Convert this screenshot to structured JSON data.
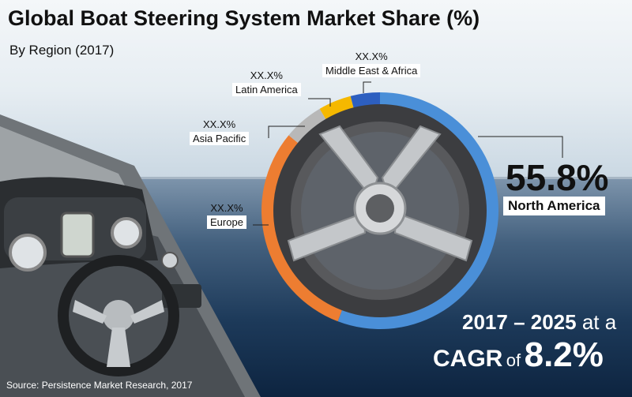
{
  "title": "Global Boat Steering System Market Share (%)",
  "subtitle": "By Region (2017)",
  "colors": {
    "north_america": "#4a8fd8",
    "europe": "#ed7d31",
    "asia_pacific": "#b8b8b8",
    "latin_america": "#f5b800",
    "middle_east_africa": "#2d5fc0"
  },
  "chart_data": {
    "type": "pie",
    "title": "Global Boat Steering System Market Share (%)",
    "subtitle": "By Region (2017)",
    "series": [
      {
        "name": "North America",
        "value": 55.8,
        "label": "55.8%"
      },
      {
        "name": "Europe",
        "value": 30.2,
        "label": "XX.X%"
      },
      {
        "name": "Asia Pacific",
        "value": 5.5,
        "label": "XX.X%"
      },
      {
        "name": "Latin America",
        "value": 4.5,
        "label": "XX.X%"
      },
      {
        "name": "Middle East & Africa",
        "value": 4.0,
        "label": "XX.X%"
      }
    ]
  },
  "labels": {
    "mea_pct": "XX.X%",
    "mea_name": "Middle East & Africa",
    "la_pct": "XX.X%",
    "la_name": "Latin America",
    "ap_pct": "XX.X%",
    "ap_name": "Asia Pacific",
    "eu_pct": "XX.X%",
    "eu_name": "Europe",
    "na_pct": "55.8%",
    "na_name": "North America"
  },
  "cagr": {
    "period": "2017 – 2025",
    "at_a": "at a",
    "word": "CAGR",
    "of": "of",
    "value": "8.2%"
  },
  "source": "Source: Persistence Market Research, 2017"
}
